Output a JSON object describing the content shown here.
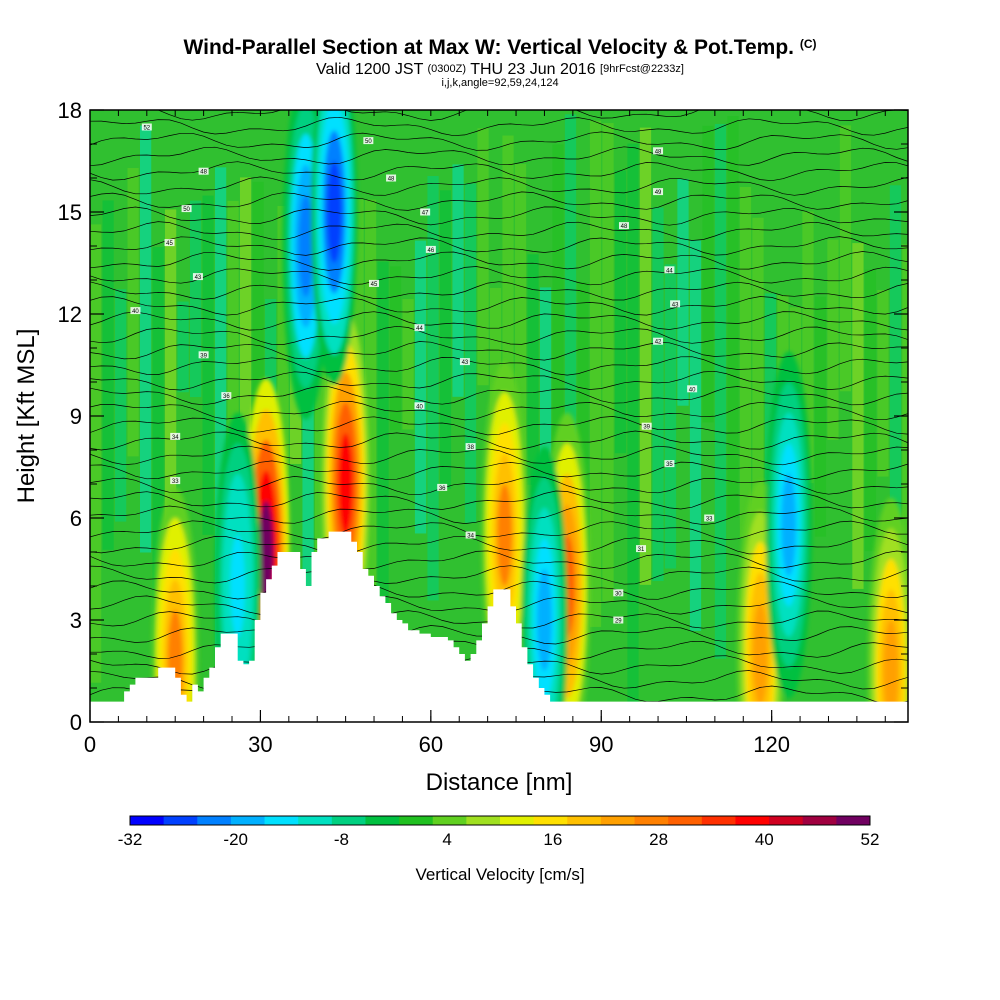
{
  "header": {
    "title_main": "Wind-Parallel Section at Max W: Vertical Velocity & Pot.Temp.",
    "title_unit": "(C)",
    "valid_prefix": "Valid 1200 JST",
    "valid_zulu": "(0300Z)",
    "valid_date": "THU 23 Jun 2016",
    "forecast": "[9hrFcst@2233z]",
    "indices": "i,j,k,angle=92,59,24,124"
  },
  "chart_data": {
    "type": "heatmap",
    "xlabel": "Distance [nm]",
    "ylabel": "Height [Kft MSL]",
    "xlim": [
      0,
      144
    ],
    "ylim": [
      0,
      18
    ],
    "x_ticks": [
      "0",
      "30",
      "60",
      "90",
      "120"
    ],
    "y_ticks": [
      "0",
      "3",
      "6",
      "9",
      "12",
      "15",
      "18"
    ],
    "colorbar": {
      "title": "Vertical Velocity [cm/s]",
      "min": -32,
      "max": 52,
      "step": 4,
      "labels": [
        "-32",
        "-20",
        "-8",
        "4",
        "16",
        "28",
        "40",
        "52"
      ],
      "colors": [
        "#0000ff",
        "#0040ff",
        "#0080ff",
        "#00b0ff",
        "#00e0ff",
        "#00e0c0",
        "#00d080",
        "#00c040",
        "#20c020",
        "#60d020",
        "#a0e020",
        "#e0f000",
        "#ffe000",
        "#ffc000",
        "#ffa000",
        "#ff8000",
        "#ff6000",
        "#ff3000",
        "#ff0000",
        "#d00020",
        "#a00040",
        "#700060"
      ]
    },
    "terrain_kft": [
      [
        0,
        0.6
      ],
      [
        5,
        0.6
      ],
      [
        6,
        0.9
      ],
      [
        7,
        1.1
      ],
      [
        8,
        1.3
      ],
      [
        11,
        1.3
      ],
      [
        12,
        1.6
      ],
      [
        14,
        1.6
      ],
      [
        15,
        1.3
      ],
      [
        16,
        0.8
      ],
      [
        17,
        0.6
      ],
      [
        18,
        1.1
      ],
      [
        19,
        0.9
      ],
      [
        20,
        1.3
      ],
      [
        21,
        1.6
      ],
      [
        22,
        2.2
      ],
      [
        23,
        2.6
      ],
      [
        25,
        2.6
      ],
      [
        26,
        1.8
      ],
      [
        27,
        1.7
      ],
      [
        28,
        1.8
      ],
      [
        29,
        3.0
      ],
      [
        30,
        3.8
      ],
      [
        31,
        4.2
      ],
      [
        32,
        4.6
      ],
      [
        33,
        5.0
      ],
      [
        36,
        5.0
      ],
      [
        37,
        4.5
      ],
      [
        38,
        4.0
      ],
      [
        39,
        5.0
      ],
      [
        40,
        5.4
      ],
      [
        42,
        5.6
      ],
      [
        45,
        5.6
      ],
      [
        46,
        5.3
      ],
      [
        47,
        5.0
      ],
      [
        48,
        4.5
      ],
      [
        49,
        4.3
      ],
      [
        50,
        4.0
      ],
      [
        51,
        3.7
      ],
      [
        52,
        3.5
      ],
      [
        53,
        3.2
      ],
      [
        54,
        3.0
      ],
      [
        55,
        2.9
      ],
      [
        56,
        2.7
      ],
      [
        58,
        2.6
      ],
      [
        60,
        2.5
      ],
      [
        62,
        2.5
      ],
      [
        63,
        2.4
      ],
      [
        64,
        2.2
      ],
      [
        65,
        2.0
      ],
      [
        66,
        1.8
      ],
      [
        67,
        2.0
      ],
      [
        68,
        2.4
      ],
      [
        69,
        2.9
      ],
      [
        70,
        3.4
      ],
      [
        71,
        3.9
      ],
      [
        73,
        3.9
      ],
      [
        74,
        3.4
      ],
      [
        75,
        2.9
      ],
      [
        76,
        2.2
      ],
      [
        77,
        1.7
      ],
      [
        78,
        1.3
      ],
      [
        79,
        1.0
      ],
      [
        80,
        0.8
      ],
      [
        81,
        0.6
      ],
      [
        144,
        0.6
      ]
    ],
    "features_cm_s": [
      {
        "x": 31,
        "z": 5.0,
        "peak": 50
      },
      {
        "x": 45,
        "z": 7.0,
        "peak": 40
      },
      {
        "x": 84,
        "z": 4.0,
        "peak": 30
      },
      {
        "x": 73,
        "z": 5.5,
        "peak": 26
      },
      {
        "x": 15,
        "z": 1.8,
        "peak": 26
      },
      {
        "x": 118,
        "z": 2.0,
        "peak": 24
      },
      {
        "x": 141,
        "z": 1.5,
        "peak": 24
      },
      {
        "x": 38,
        "z": 14.0,
        "peak": -22
      },
      {
        "x": 43,
        "z": 15.0,
        "peak": -26
      },
      {
        "x": 123,
        "z": 5.8,
        "peak": -18
      },
      {
        "x": 26,
        "z": 4.0,
        "peak": -16
      },
      {
        "x": 80,
        "z": 3.0,
        "peak": -18
      }
    ],
    "contour_labels": [
      {
        "x": 10,
        "z": 17.5,
        "text": "52"
      },
      {
        "x": 20,
        "z": 16.2,
        "text": "48"
      },
      {
        "x": 17,
        "z": 15.1,
        "text": "50"
      },
      {
        "x": 14,
        "z": 14.1,
        "text": "45"
      },
      {
        "x": 19,
        "z": 13.1,
        "text": "43"
      },
      {
        "x": 8,
        "z": 12.1,
        "text": "40"
      },
      {
        "x": 20,
        "z": 10.8,
        "text": "39"
      },
      {
        "x": 24,
        "z": 9.6,
        "text": "36"
      },
      {
        "x": 15,
        "z": 8.4,
        "text": "34"
      },
      {
        "x": 15,
        "z": 7.1,
        "text": "33"
      },
      {
        "x": 49,
        "z": 17.1,
        "text": "50"
      },
      {
        "x": 53,
        "z": 16.0,
        "text": "48"
      },
      {
        "x": 59,
        "z": 15.0,
        "text": "47"
      },
      {
        "x": 60,
        "z": 13.9,
        "text": "46"
      },
      {
        "x": 50,
        "z": 12.9,
        "text": "45"
      },
      {
        "x": 58,
        "z": 11.6,
        "text": "44"
      },
      {
        "x": 66,
        "z": 10.6,
        "text": "43"
      },
      {
        "x": 58,
        "z": 9.3,
        "text": "40"
      },
      {
        "x": 67,
        "z": 8.1,
        "text": "38"
      },
      {
        "x": 62,
        "z": 6.9,
        "text": "36"
      },
      {
        "x": 67,
        "z": 5.5,
        "text": "34"
      },
      {
        "x": 100,
        "z": 16.8,
        "text": "48"
      },
      {
        "x": 100,
        "z": 15.6,
        "text": "49"
      },
      {
        "x": 94,
        "z": 14.6,
        "text": "48"
      },
      {
        "x": 102,
        "z": 13.3,
        "text": "44"
      },
      {
        "x": 103,
        "z": 12.3,
        "text": "43"
      },
      {
        "x": 100,
        "z": 11.2,
        "text": "42"
      },
      {
        "x": 106,
        "z": 9.8,
        "text": "40"
      },
      {
        "x": 98,
        "z": 8.7,
        "text": "39"
      },
      {
        "x": 102,
        "z": 7.6,
        "text": "35"
      },
      {
        "x": 109,
        "z": 6.0,
        "text": "33"
      },
      {
        "x": 97,
        "z": 5.1,
        "text": "31"
      },
      {
        "x": 93,
        "z": 3.8,
        "text": "30"
      },
      {
        "x": 93,
        "z": 3.0,
        "text": "29"
      }
    ]
  }
}
